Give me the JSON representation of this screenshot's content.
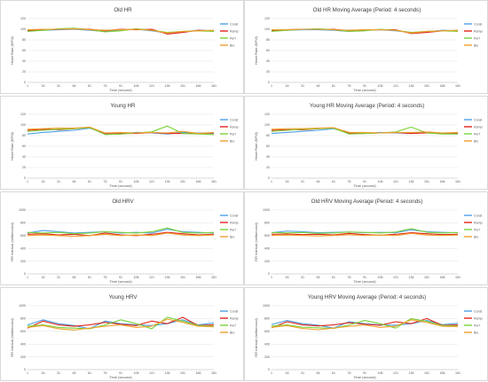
{
  "colors": {
    "Const": "#4f9fe3",
    "Ramp": "#e0251b",
    "Perf": "#7ad23a",
    "Bio": "#f0a02c",
    "grid": "#e3e3e3",
    "axis": "#bfbfbf"
  },
  "chart_data": [
    {
      "type": "line",
      "title": "Old HR",
      "xlabel": "Time (second)",
      "ylabel": "Heart Rate (BPM)",
      "ylim": [
        0,
        120
      ],
      "yticks": [
        0,
        20,
        40,
        60,
        80,
        100,
        120
      ],
      "categories": [
        "1",
        "16",
        "31",
        "46",
        "61",
        "76",
        "91",
        "106",
        "121",
        "136",
        "151",
        "166",
        "181"
      ],
      "x": [
        1,
        16,
        31,
        46,
        61,
        76,
        91,
        106,
        121,
        136,
        151,
        166,
        181
      ],
      "legend": "right",
      "series": [
        {
          "name": "Const",
          "values": [
            97,
            98,
            99,
            100,
            98,
            96,
            98,
            100,
            97,
            93,
            95,
            98,
            97
          ]
        },
        {
          "name": "Ramp",
          "values": [
            98,
            99,
            100,
            101,
            100,
            97,
            100,
            99,
            100,
            91,
            94,
            98,
            97
          ]
        },
        {
          "name": "Perf",
          "values": [
            96,
            98,
            101,
            102,
            99,
            95,
            97,
            101,
            98,
            94,
            96,
            97,
            96
          ]
        },
        {
          "name": "Bio",
          "values": [
            99,
            100,
            100,
            101,
            99,
            98,
            99,
            100,
            98,
            93,
            96,
            97,
            98
          ]
        }
      ]
    },
    {
      "type": "line",
      "title": "Old HR Moving Average (Period: 4 seconds)",
      "xlabel": "Time (second)",
      "ylabel": "Heart Rate (BPM)",
      "ylim": [
        0,
        120
      ],
      "yticks": [
        0,
        20,
        40,
        60,
        80,
        100,
        120
      ],
      "categories": [
        "1",
        "16",
        "31",
        "46",
        "61",
        "76",
        "91",
        "106",
        "121",
        "136",
        "151",
        "166",
        "181"
      ],
      "x": [
        1,
        16,
        31,
        46,
        61,
        76,
        91,
        106,
        121,
        136,
        151,
        166,
        181
      ],
      "legend": "right",
      "series": [
        {
          "name": "Const",
          "values": [
            97,
            98,
            99,
            99,
            98,
            96,
            98,
            99,
            97,
            94,
            95,
            98,
            97
          ]
        },
        {
          "name": "Ramp",
          "values": [
            98,
            99,
            100,
            100,
            100,
            97,
            99,
            99,
            99,
            92,
            94,
            97,
            97
          ]
        },
        {
          "name": "Perf",
          "values": [
            96,
            98,
            100,
            101,
            99,
            96,
            97,
            100,
            98,
            94,
            96,
            97,
            96
          ]
        },
        {
          "name": "Bio",
          "values": [
            99,
            99,
            100,
            100,
            99,
            98,
            99,
            99,
            98,
            93,
            96,
            97,
            98
          ]
        }
      ]
    },
    {
      "type": "line",
      "title": "Young HR",
      "xlabel": "Time (second)",
      "ylabel": "Heart Rate (BPM)",
      "ylim": [
        0,
        120
      ],
      "yticks": [
        0,
        20,
        40,
        60,
        80,
        100,
        120
      ],
      "categories": [
        "1",
        "16",
        "31",
        "46",
        "61",
        "76",
        "91",
        "106",
        "121",
        "136",
        "151",
        "166",
        "181"
      ],
      "x": [
        1,
        16,
        31,
        46,
        61,
        76,
        91,
        106,
        121,
        136,
        151,
        166,
        181
      ],
      "legend": "right",
      "series": [
        {
          "name": "Const",
          "values": [
            83,
            86,
            88,
            90,
            94,
            84,
            83,
            86,
            85,
            83,
            86,
            85,
            84
          ]
        },
        {
          "name": "Ramp",
          "values": [
            90,
            92,
            91,
            93,
            96,
            83,
            84,
            84,
            86,
            84,
            84,
            84,
            85
          ]
        },
        {
          "name": "Perf",
          "values": [
            88,
            90,
            92,
            93,
            95,
            82,
            83,
            85,
            87,
            98,
            84,
            83,
            82
          ]
        },
        {
          "name": "Bio",
          "values": [
            92,
            93,
            94,
            94,
            96,
            85,
            86,
            85,
            86,
            85,
            88,
            84,
            86
          ]
        }
      ]
    },
    {
      "type": "line",
      "title": "Young HR Moving Average (Period: 4 seconds)",
      "xlabel": "Time (second)",
      "ylabel": "Heart Rate (BPM)",
      "ylim": [
        0,
        120
      ],
      "yticks": [
        0,
        20,
        40,
        60,
        80,
        100,
        120
      ],
      "categories": [
        "1",
        "16",
        "31",
        "46",
        "61",
        "76",
        "91",
        "106",
        "121",
        "136",
        "151",
        "166",
        "181"
      ],
      "x": [
        1,
        16,
        31,
        46,
        61,
        76,
        91,
        106,
        121,
        136,
        151,
        166,
        181
      ],
      "legend": "right",
      "series": [
        {
          "name": "Const",
          "values": [
            84,
            86,
            88,
            90,
            93,
            85,
            84,
            86,
            85,
            84,
            86,
            85,
            84
          ]
        },
        {
          "name": "Ramp",
          "values": [
            90,
            91,
            91,
            93,
            95,
            84,
            84,
            85,
            86,
            84,
            85,
            84,
            85
          ]
        },
        {
          "name": "Perf",
          "values": [
            88,
            90,
            92,
            93,
            94,
            83,
            84,
            85,
            87,
            96,
            85,
            83,
            83
          ]
        },
        {
          "name": "Bio",
          "values": [
            92,
            93,
            93,
            94,
            95,
            86,
            86,
            85,
            86,
            86,
            87,
            85,
            86
          ]
        }
      ]
    },
    {
      "type": "line",
      "title": "Old HRV",
      "xlabel": "Time (second)",
      "ylabel": "RR Interval (millisecond)",
      "ylim": [
        0,
        1000
      ],
      "yticks": [
        0,
        200,
        400,
        600,
        800,
        1000
      ],
      "categories": [
        "1",
        "16",
        "31",
        "46",
        "61",
        "76",
        "91",
        "106",
        "121",
        "136",
        "151",
        "166",
        "181"
      ],
      "x": [
        1,
        16,
        31,
        46,
        61,
        76,
        91,
        106,
        121,
        136,
        151,
        166,
        181
      ],
      "legend": "right",
      "series": [
        {
          "name": "Const",
          "values": [
            640,
            680,
            660,
            640,
            650,
            660,
            640,
            650,
            640,
            700,
            660,
            650,
            640
          ]
        },
        {
          "name": "Ramp",
          "values": [
            620,
            630,
            610,
            620,
            600,
            640,
            610,
            600,
            620,
            650,
            630,
            610,
            620
          ]
        },
        {
          "name": "Perf",
          "values": [
            650,
            640,
            650,
            630,
            640,
            660,
            650,
            640,
            660,
            720,
            650,
            640,
            650
          ]
        },
        {
          "name": "Bio",
          "values": [
            600,
            610,
            600,
            590,
            600,
            620,
            600,
            610,
            600,
            640,
            610,
            600,
            610
          ]
        }
      ]
    },
    {
      "type": "line",
      "title": "Old HRV Moving Average (Period: 4 seconds)",
      "xlabel": "Time (second)",
      "ylabel": "RR Interval (millisecond)",
      "ylim": [
        0,
        1000
      ],
      "yticks": [
        0,
        200,
        400,
        600,
        800,
        1000
      ],
      "categories": [
        "1",
        "16",
        "31",
        "46",
        "61",
        "76",
        "91",
        "106",
        "121",
        "136",
        "151",
        "166",
        "181"
      ],
      "x": [
        1,
        16,
        31,
        46,
        61,
        76,
        91,
        106,
        121,
        136,
        151,
        166,
        181
      ],
      "legend": "right",
      "series": [
        {
          "name": "Const",
          "values": [
            645,
            670,
            660,
            645,
            650,
            655,
            645,
            650,
            645,
            690,
            660,
            650,
            645
          ]
        },
        {
          "name": "Ramp",
          "values": [
            620,
            625,
            615,
            620,
            610,
            635,
            615,
            605,
            620,
            645,
            630,
            615,
            620
          ]
        },
        {
          "name": "Perf",
          "values": [
            648,
            642,
            648,
            635,
            642,
            655,
            650,
            642,
            655,
            710,
            652,
            642,
            648
          ]
        },
        {
          "name": "Bio",
          "values": [
            602,
            608,
            602,
            595,
            602,
            615,
            602,
            608,
            602,
            635,
            610,
            602,
            608
          ]
        }
      ]
    },
    {
      "type": "line",
      "title": "Young HRV",
      "xlabel": "Time (second)",
      "ylabel": "RR Interval (millisecond)",
      "ylim": [
        0,
        1000
      ],
      "yticks": [
        0,
        200,
        400,
        600,
        800,
        1000
      ],
      "categories": [
        "1",
        "16",
        "31",
        "46",
        "61",
        "76",
        "91",
        "106",
        "121",
        "136",
        "151",
        "166",
        "181"
      ],
      "x": [
        1,
        16,
        31,
        46,
        61,
        76,
        91,
        106,
        121,
        136,
        151,
        166,
        181
      ],
      "legend": "right",
      "series": [
        {
          "name": "Const",
          "values": [
            700,
            780,
            720,
            690,
            640,
            760,
            720,
            700,
            690,
            720,
            780,
            700,
            730
          ]
        },
        {
          "name": "Ramp",
          "values": [
            650,
            760,
            700,
            680,
            700,
            740,
            710,
            690,
            760,
            720,
            820,
            690,
            700
          ]
        },
        {
          "name": "Perf",
          "values": [
            680,
            700,
            660,
            650,
            640,
            700,
            780,
            720,
            640,
            820,
            760,
            690,
            680
          ]
        },
        {
          "name": "Bio",
          "values": [
            660,
            690,
            640,
            620,
            650,
            680,
            700,
            660,
            680,
            790,
            740,
            680,
            670
          ]
        }
      ]
    },
    {
      "type": "line",
      "title": "Young HRV Moving Average (Period: 4 seconds)",
      "xlabel": "Time (second)",
      "ylabel": "RR Interval (millisecond)",
      "ylim": [
        0,
        1000
      ],
      "yticks": [
        0,
        200,
        400,
        600,
        800,
        1000
      ],
      "categories": [
        "1",
        "16",
        "31",
        "46",
        "61",
        "76",
        "91",
        "106",
        "121",
        "136",
        "151",
        "166",
        "181"
      ],
      "x": [
        1,
        16,
        31,
        46,
        61,
        76,
        91,
        106,
        121,
        136,
        151,
        166,
        181
      ],
      "legend": "right",
      "series": [
        {
          "name": "Const",
          "values": [
            705,
            770,
            720,
            695,
            650,
            750,
            720,
            700,
            695,
            720,
            770,
            705,
            725
          ]
        },
        {
          "name": "Ramp",
          "values": [
            655,
            750,
            700,
            685,
            700,
            735,
            710,
            695,
            750,
            720,
            800,
            695,
            700
          ]
        },
        {
          "name": "Perf",
          "values": [
            682,
            700,
            665,
            655,
            645,
            700,
            770,
            720,
            650,
            800,
            755,
            692,
            682
          ]
        },
        {
          "name": "Bio",
          "values": [
            662,
            688,
            645,
            625,
            650,
            678,
            698,
            662,
            680,
            780,
            738,
            680,
            672
          ]
        }
      ]
    }
  ]
}
